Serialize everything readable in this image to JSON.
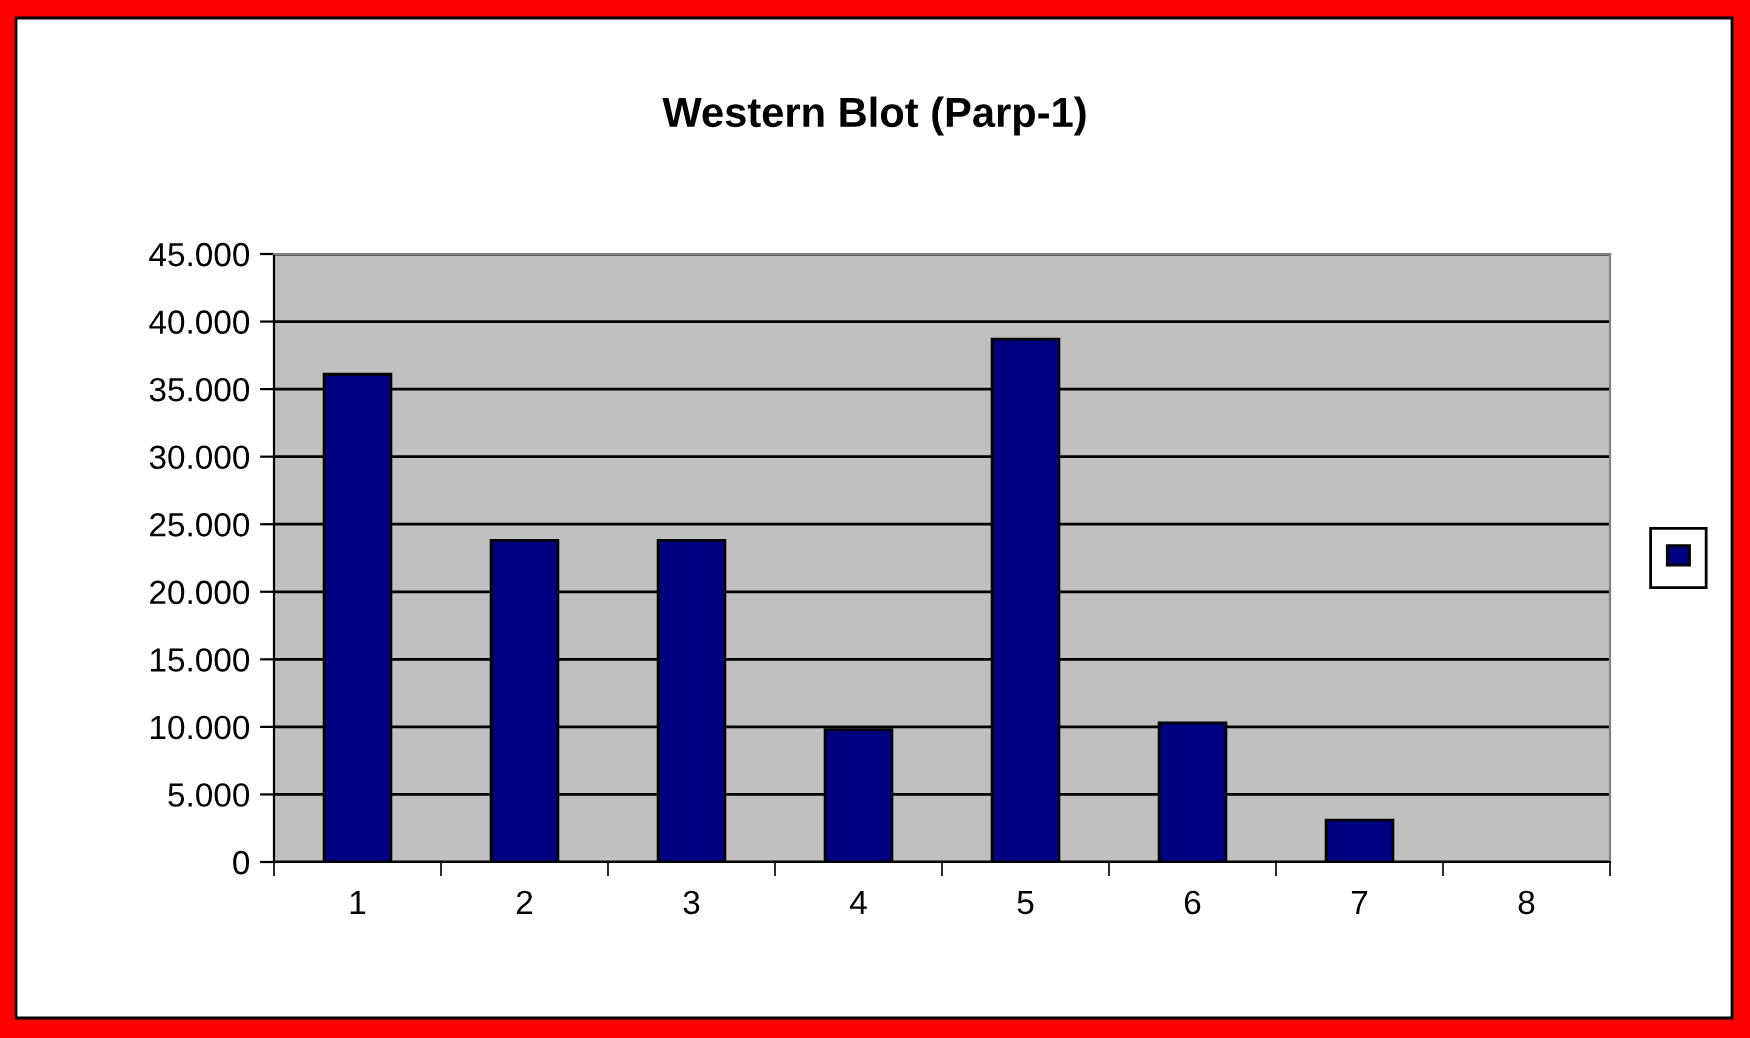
{
  "chart_data": {
    "type": "bar",
    "title": "Western Blot (Parp-1)",
    "categories": [
      "1",
      "2",
      "3",
      "4",
      "5",
      "6",
      "7",
      "8"
    ],
    "series": [
      {
        "color": "#000080",
        "values": [
          36100,
          23800,
          23800,
          9800,
          38700,
          10300,
          3100,
          0
        ]
      }
    ],
    "ylim": [
      0,
      45000
    ],
    "yticks": [
      0,
      {
        "value": 5000,
        "label": "5.000"
      },
      {
        "value": 10000,
        "label": "10.000"
      },
      {
        "value": 15000,
        "label": "15.000"
      },
      {
        "value": 20000,
        "label": "20.000"
      },
      {
        "value": 25000,
        "label": "25.000"
      },
      {
        "value": 30000,
        "label": "30.000"
      },
      {
        "value": 35000,
        "label": "35.000"
      },
      {
        "value": 40000,
        "label": "40.000"
      },
      {
        "value": 45000,
        "label": "45.000"
      }
    ],
    "grid": "y"
  }
}
